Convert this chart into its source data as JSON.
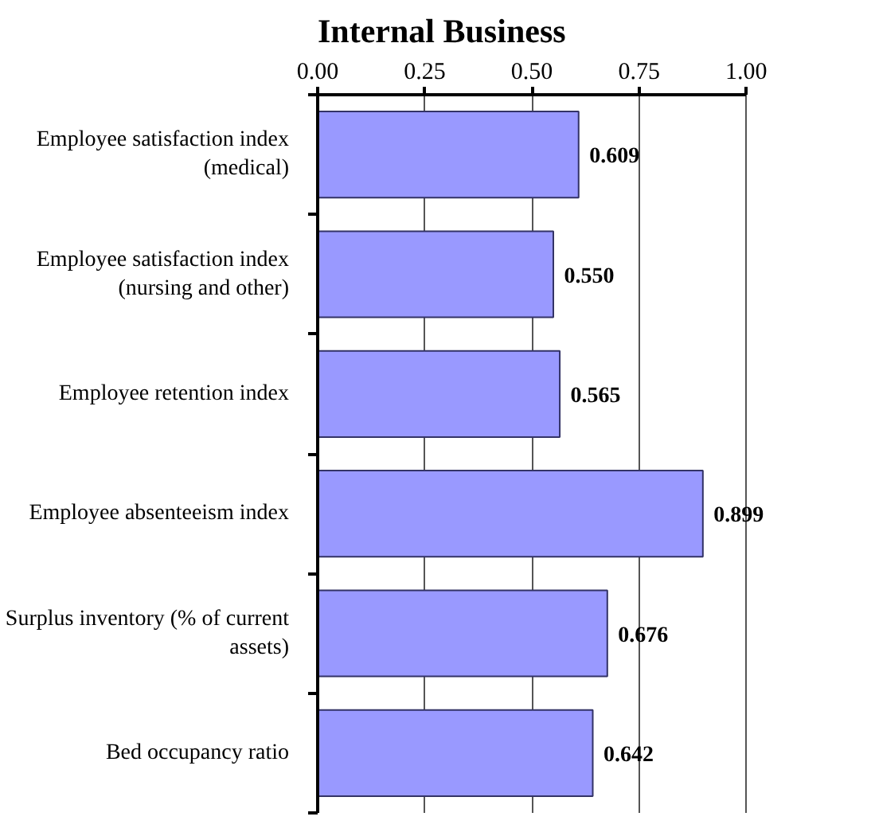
{
  "chart_data": {
    "type": "bar",
    "orientation": "horizontal",
    "title": "Internal Business",
    "categories": [
      "Employee satisfaction index (medical)",
      "Employee satisfaction index (nursing and other)",
      "Employee retention index",
      "Employee absenteeism index",
      "Surplus inventory (% of current assets)",
      "Bed occupancy ratio"
    ],
    "values": [
      0.609,
      0.55,
      0.565,
      0.899,
      0.676,
      0.642
    ],
    "color": "#9999ff",
    "xlim": [
      0,
      1
    ],
    "xticks": [
      {
        "value": 0,
        "label": "0.00"
      },
      {
        "value": 0.25,
        "label": "0.25"
      },
      {
        "value": 0.5,
        "label": "0.50"
      },
      {
        "value": 0.75,
        "label": "0.75"
      },
      {
        "value": 1,
        "label": "1.00"
      }
    ],
    "value_labels": [
      "0.609",
      "0.550",
      "0.565",
      "0.899",
      "0.676",
      "0.642"
    ],
    "grid": "x"
  }
}
